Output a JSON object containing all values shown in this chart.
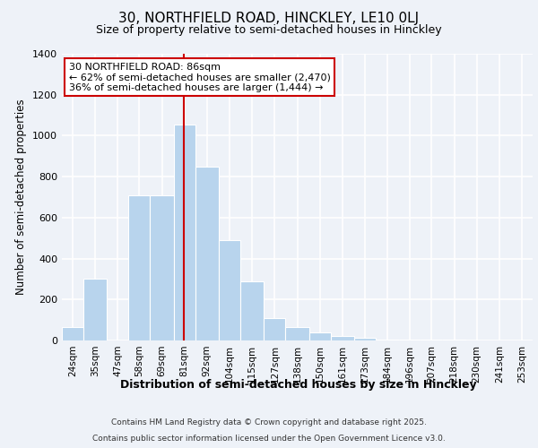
{
  "title_line1": "30, NORTHFIELD ROAD, HINCKLEY, LE10 0LJ",
  "title_line2": "Size of property relative to semi-detached houses in Hinckley",
  "xlabel": "Distribution of semi-detached houses by size in Hinckley",
  "ylabel": "Number of semi-detached properties",
  "annotation_line1": "30 NORTHFIELD ROAD: 86sqm",
  "annotation_line2": "← 62% of semi-detached houses are smaller (2,470)",
  "annotation_line3": "36% of semi-detached houses are larger (1,444) →",
  "vline_color": "#cc0000",
  "vline_x": 86,
  "categories": [
    "24sqm",
    "35sqm",
    "47sqm",
    "58sqm",
    "69sqm",
    "81sqm",
    "92sqm",
    "104sqm",
    "115sqm",
    "127sqm",
    "138sqm",
    "150sqm",
    "161sqm",
    "173sqm",
    "184sqm",
    "196sqm",
    "207sqm",
    "218sqm",
    "230sqm",
    "241sqm",
    "253sqm"
  ],
  "bin_edges": [
    24,
    35,
    47,
    58,
    69,
    81,
    92,
    104,
    115,
    127,
    138,
    150,
    161,
    173,
    184,
    196,
    207,
    218,
    230,
    241,
    253,
    264
  ],
  "values": [
    65,
    300,
    0,
    710,
    710,
    1055,
    850,
    490,
    290,
    110,
    65,
    40,
    20,
    15,
    5,
    5,
    5,
    3,
    2,
    1,
    1
  ],
  "ylim": [
    0,
    1400
  ],
  "yticks": [
    0,
    200,
    400,
    600,
    800,
    1000,
    1200,
    1400
  ],
  "footnote_line1": "Contains HM Land Registry data © Crown copyright and database right 2025.",
  "footnote_line2": "Contains public sector information licensed under the Open Government Licence v3.0.",
  "background_color": "#eef2f8",
  "bar_color": "#b8d4ed",
  "bar_edge_color": "#b8d4ed",
  "grid_color": "#ffffff",
  "annotation_box_facecolor": "#ffffff",
  "annotation_box_edgecolor": "#cc0000"
}
